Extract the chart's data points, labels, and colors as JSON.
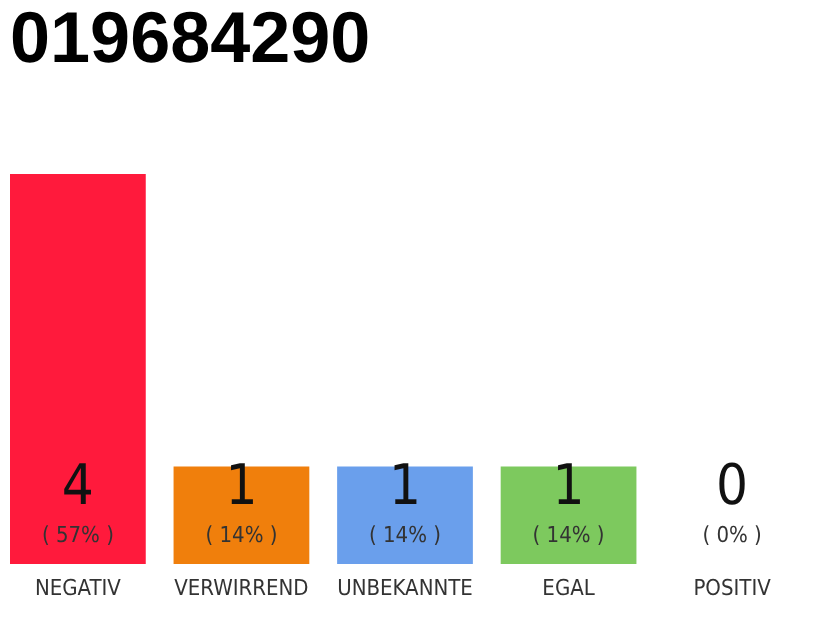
{
  "chart_data": {
    "type": "bar",
    "title": "019684290",
    "categories": [
      "NEGATIV",
      "VERWIRREND",
      "UNBEKANNTE",
      "EGAL",
      "POSITIV"
    ],
    "values": [
      4,
      1,
      1,
      1,
      0
    ],
    "colors": [
      "#ff1a3c",
      "#f07f0c",
      "#6a9fec",
      "#7dc95e",
      "#1aa84a"
    ],
    "value_labels": [
      "4",
      "1",
      "1",
      "1",
      "0"
    ],
    "annotations": [
      "( 57% )",
      "( 14% )",
      "( 14% )",
      "( 14% )",
      "( 0% )"
    ],
    "tick_labels": "x"
  }
}
